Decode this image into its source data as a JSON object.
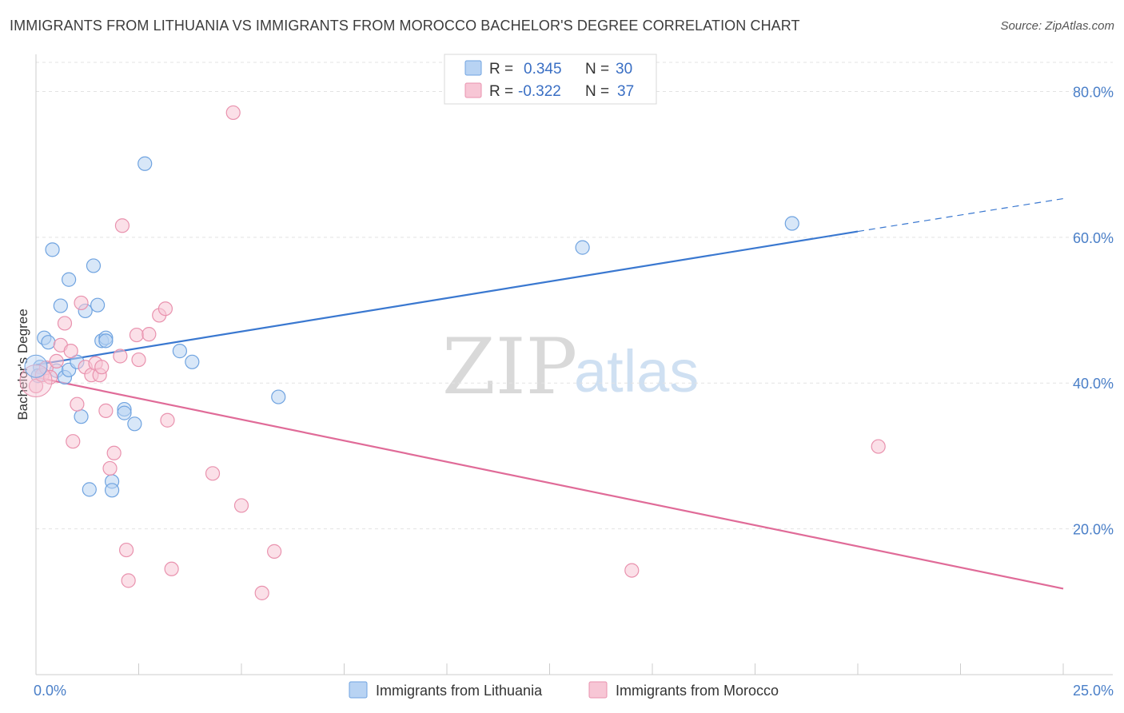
{
  "header": {
    "title": "IMMIGRANTS FROM LITHUANIA VS IMMIGRANTS FROM MOROCCO BACHELOR'S DEGREE CORRELATION CHART",
    "source": "Source: ZipAtlas.com"
  },
  "watermark": {
    "zip": "ZIP",
    "atlas": "atlas"
  },
  "legend": {
    "rows": [
      {
        "r_label": "R =",
        "r_value": "0.345",
        "n_label": "N =",
        "n_value": "30"
      },
      {
        "r_label": "R =",
        "r_value": "-0.322",
        "n_label": "N =",
        "n_value": "37"
      }
    ]
  },
  "chart_data": {
    "type": "scatter",
    "xlabel": "",
    "ylabel": "Bachelor's Degree",
    "xlim": [
      0,
      25
    ],
    "ylim": [
      0,
      84
    ],
    "x_tick_labels": [
      {
        "value": 0,
        "label": "0.0%"
      },
      {
        "value": 25,
        "label": "25.0%"
      }
    ],
    "y_tick_labels": [
      {
        "value": 20,
        "label": "20.0%"
      },
      {
        "value": 40,
        "label": "40.0%"
      },
      {
        "value": 60,
        "label": "60.0%"
      },
      {
        "value": 80,
        "label": "80.0%"
      }
    ],
    "grid": "horizontal-dashed",
    "series": [
      {
        "name": "Immigrants from Lithuania",
        "color": "#6fa3e0",
        "fill": "#b8d3f3",
        "line_color": "#3a78d0",
        "trend": {
          "x0": 0,
          "y0": 42.5,
          "x1": 20,
          "y1": 60.8,
          "dashed_to_x": 25,
          "dashed_to_y": 65.3
        },
        "points": [
          [
            0.1,
            42.2
          ],
          [
            0.2,
            46.2
          ],
          [
            0.3,
            45.6
          ],
          [
            0.4,
            58.3
          ],
          [
            0.5,
            41.7
          ],
          [
            0.6,
            50.6
          ],
          [
            0.7,
            40.8
          ],
          [
            0.8,
            54.2
          ],
          [
            0.8,
            41.8
          ],
          [
            1.0,
            42.9
          ],
          [
            1.1,
            35.4
          ],
          [
            1.2,
            49.9
          ],
          [
            1.3,
            25.4
          ],
          [
            1.4,
            56.1
          ],
          [
            1.5,
            50.7
          ],
          [
            1.6,
            45.8
          ],
          [
            1.7,
            46.2
          ],
          [
            1.7,
            45.8
          ],
          [
            1.85,
            26.5
          ],
          [
            1.85,
            25.3
          ],
          [
            2.15,
            36.4
          ],
          [
            2.15,
            35.9
          ],
          [
            2.4,
            34.4
          ],
          [
            2.65,
            70.1
          ],
          [
            3.5,
            44.4
          ],
          [
            3.8,
            42.9
          ],
          [
            5.9,
            38.1
          ],
          [
            13.3,
            58.6
          ],
          [
            18.4,
            61.9
          ],
          [
            0.05,
            41.0
          ]
        ]
      },
      {
        "name": "Immigrants from Morocco",
        "color": "#e992ae",
        "fill": "#f7c6d5",
        "line_color": "#e06b98",
        "trend": {
          "x0": 0,
          "y0": 40.8,
          "x1": 25,
          "y1": 11.8
        },
        "points": [
          [
            0.0,
            39.6
          ],
          [
            0.15,
            41.1
          ],
          [
            0.25,
            42.1
          ],
          [
            0.35,
            40.8
          ],
          [
            0.5,
            43.0
          ],
          [
            0.6,
            45.2
          ],
          [
            0.7,
            48.2
          ],
          [
            0.85,
            44.4
          ],
          [
            0.9,
            32.0
          ],
          [
            1.0,
            37.1
          ],
          [
            1.1,
            51.0
          ],
          [
            1.2,
            42.2
          ],
          [
            1.35,
            41.1
          ],
          [
            1.45,
            42.7
          ],
          [
            1.55,
            41.1
          ],
          [
            1.6,
            42.2
          ],
          [
            1.7,
            36.2
          ],
          [
            1.8,
            28.3
          ],
          [
            1.9,
            30.4
          ],
          [
            2.05,
            43.7
          ],
          [
            2.1,
            61.6
          ],
          [
            2.2,
            17.1
          ],
          [
            2.25,
            12.9
          ],
          [
            2.45,
            46.6
          ],
          [
            2.5,
            43.2
          ],
          [
            2.75,
            46.7
          ],
          [
            3.0,
            49.3
          ],
          [
            3.15,
            50.2
          ],
          [
            3.2,
            34.9
          ],
          [
            3.3,
            14.5
          ],
          [
            4.3,
            27.6
          ],
          [
            4.8,
            77.1
          ],
          [
            5.0,
            23.2
          ],
          [
            5.5,
            11.2
          ],
          [
            5.8,
            16.9
          ],
          [
            14.5,
            14.3
          ],
          [
            20.5,
            31.3
          ]
        ]
      }
    ],
    "legend": {
      "placement": "top-center",
      "bottom_legend": "bottom-center"
    }
  }
}
